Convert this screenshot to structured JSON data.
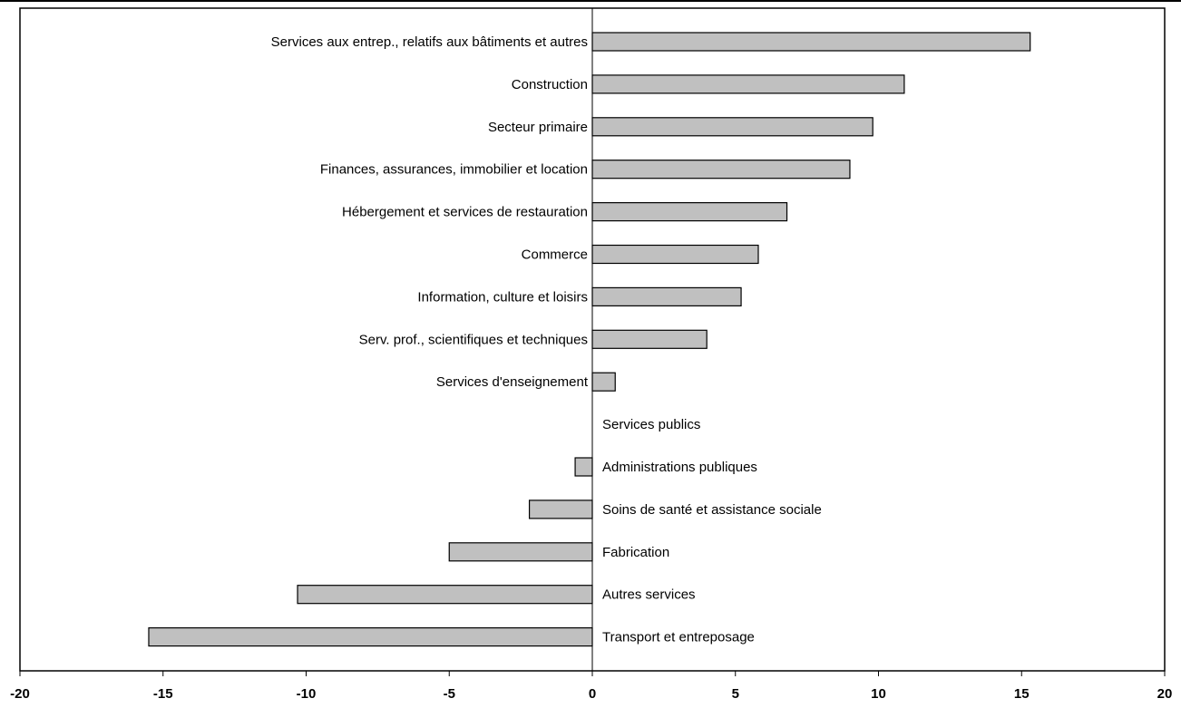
{
  "chart_data": {
    "type": "bar",
    "orientation": "horizontal",
    "categories": [
      "Services aux entrep., relatifs aux bâtiments et autres",
      "Construction",
      "Secteur primaire",
      "Finances, assurances, immobilier et location",
      "Hébergement et services de restauration",
      "Commerce",
      "Information, culture et loisirs",
      "Serv. prof., scientifiques et techniques",
      "Services d'enseignement",
      "Services publics",
      "Administrations publiques",
      "Soins de santé et assistance sociale",
      "Fabrication",
      "Autres services",
      "Transport et entreposage"
    ],
    "values": [
      15.3,
      10.9,
      9.8,
      9.0,
      6.8,
      5.8,
      5.2,
      4.0,
      0.8,
      0.0,
      -0.6,
      -2.2,
      -5.0,
      -10.3,
      -15.5
    ],
    "xlim": [
      -20,
      20
    ],
    "x_ticks": [
      "-20",
      "-15",
      "-10",
      "-5",
      "0",
      "5",
      "10",
      "15",
      "20"
    ],
    "title": "",
    "xlabel": "",
    "ylabel": "",
    "grid": false,
    "legend": "none",
    "bar_fill": "#c0c0c0",
    "bar_stroke": "#000000"
  }
}
